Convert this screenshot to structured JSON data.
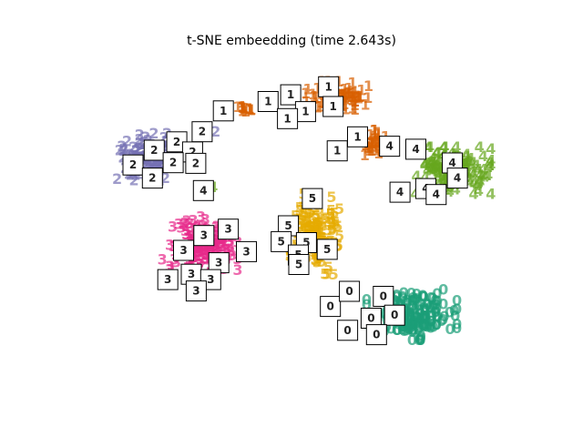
{
  "chart_data": {
    "type": "scatter",
    "title": "t-SNE embeedding (time 2.643s)",
    "xlabel": "",
    "ylabel": "",
    "axes_visible": false,
    "grid": false,
    "marker": "digit-text",
    "xlim": [
      0.0,
      1.0
    ],
    "ylim": [
      0.0,
      1.0
    ],
    "colors": {
      "0": "#1b9e77",
      "1": "#d95f02",
      "2": "#7570b3",
      "3": "#e7298a",
      "4": "#66a61e",
      "5": "#e6ab02"
    },
    "series": [
      {
        "label": "0",
        "center": [
          0.75,
          0.22
        ],
        "spread": [
          0.1,
          0.075
        ],
        "count": 180
      },
      {
        "label": "1",
        "center": [
          0.585,
          0.87
        ],
        "spread": [
          0.07,
          0.045
        ],
        "count": 90
      },
      {
        "label": "1",
        "center": [
          0.665,
          0.73
        ],
        "spread": [
          0.04,
          0.04
        ],
        "count": 45
      },
      {
        "label": "1",
        "center": [
          0.38,
          0.83
        ],
        "spread": [
          0.015,
          0.012
        ],
        "count": 14
      },
      {
        "label": "2",
        "center": [
          0.17,
          0.69
        ],
        "spread": [
          0.075,
          0.07
        ],
        "count": 150
      },
      {
        "label": "3",
        "center": [
          0.29,
          0.43
        ],
        "spread": [
          0.075,
          0.085
        ],
        "count": 170
      },
      {
        "label": "4",
        "center": [
          0.84,
          0.65
        ],
        "spread": [
          0.085,
          0.07
        ],
        "count": 160
      },
      {
        "label": "5",
        "center": [
          0.535,
          0.46
        ],
        "spread": [
          0.055,
          0.12
        ],
        "count": 160
      }
    ],
    "outliers": [
      {
        "label": "2",
        "x": 0.316,
        "y": 0.765
      },
      {
        "label": "4",
        "x": 0.31,
        "y": 0.6
      },
      {
        "label": "3",
        "x": 0.198,
        "y": 0.385
      }
    ],
    "thumbnails": [
      {
        "label": "1",
        "x": 0.432,
        "y": 0.855
      },
      {
        "label": "1",
        "x": 0.482,
        "y": 0.875
      },
      {
        "label": "1",
        "x": 0.566,
        "y": 0.899
      },
      {
        "label": "1",
        "x": 0.515,
        "y": 0.825
      },
      {
        "label": "1",
        "x": 0.576,
        "y": 0.84
      },
      {
        "label": "1",
        "x": 0.475,
        "y": 0.804
      },
      {
        "label": "1",
        "x": 0.63,
        "y": 0.75
      },
      {
        "label": "1",
        "x": 0.585,
        "y": 0.708
      },
      {
        "label": "1",
        "x": 0.333,
        "y": 0.827
      },
      {
        "label": "2",
        "x": 0.286,
        "y": 0.765
      },
      {
        "label": "2",
        "x": 0.18,
        "y": 0.71
      },
      {
        "label": "2",
        "x": 0.23,
        "y": 0.735
      },
      {
        "label": "2",
        "x": 0.265,
        "y": 0.705
      },
      {
        "label": "2",
        "x": 0.133,
        "y": 0.666
      },
      {
        "label": "2",
        "x": 0.222,
        "y": 0.673
      },
      {
        "label": "2",
        "x": 0.272,
        "y": 0.671
      },
      {
        "label": "2",
        "x": 0.176,
        "y": 0.627
      },
      {
        "label": "4",
        "x": 0.289,
        "y": 0.59
      },
      {
        "label": "4",
        "x": 0.701,
        "y": 0.722
      },
      {
        "label": "4",
        "x": 0.759,
        "y": 0.713
      },
      {
        "label": "4",
        "x": 0.84,
        "y": 0.672
      },
      {
        "label": "4",
        "x": 0.851,
        "y": 0.627
      },
      {
        "label": "4",
        "x": 0.724,
        "y": 0.585
      },
      {
        "label": "4",
        "x": 0.781,
        "y": 0.596
      },
      {
        "label": "4",
        "x": 0.804,
        "y": 0.578
      },
      {
        "label": "5",
        "x": 0.53,
        "y": 0.566
      },
      {
        "label": "5",
        "x": 0.477,
        "y": 0.485
      },
      {
        "label": "5",
        "x": 0.461,
        "y": 0.438
      },
      {
        "label": "5",
        "x": 0.517,
        "y": 0.435
      },
      {
        "label": "5",
        "x": 0.499,
        "y": 0.398
      },
      {
        "label": "5",
        "x": 0.563,
        "y": 0.415
      },
      {
        "label": "5",
        "x": 0.5,
        "y": 0.37
      },
      {
        "label": "3",
        "x": 0.344,
        "y": 0.475
      },
      {
        "label": "3",
        "x": 0.29,
        "y": 0.456
      },
      {
        "label": "3",
        "x": 0.245,
        "y": 0.412
      },
      {
        "label": "3",
        "x": 0.323,
        "y": 0.375
      },
      {
        "label": "3",
        "x": 0.384,
        "y": 0.408
      },
      {
        "label": "3",
        "x": 0.21,
        "y": 0.325
      },
      {
        "label": "3",
        "x": 0.262,
        "y": 0.341
      },
      {
        "label": "3",
        "x": 0.305,
        "y": 0.325
      },
      {
        "label": "3",
        "x": 0.273,
        "y": 0.291
      },
      {
        "label": "0",
        "x": 0.57,
        "y": 0.245
      },
      {
        "label": "0",
        "x": 0.612,
        "y": 0.29
      },
      {
        "label": "0",
        "x": 0.687,
        "y": 0.275
      },
      {
        "label": "0",
        "x": 0.712,
        "y": 0.219
      },
      {
        "label": "0",
        "x": 0.66,
        "y": 0.21
      },
      {
        "label": "0",
        "x": 0.608,
        "y": 0.174
      },
      {
        "label": "0",
        "x": 0.672,
        "y": 0.161
      }
    ]
  }
}
